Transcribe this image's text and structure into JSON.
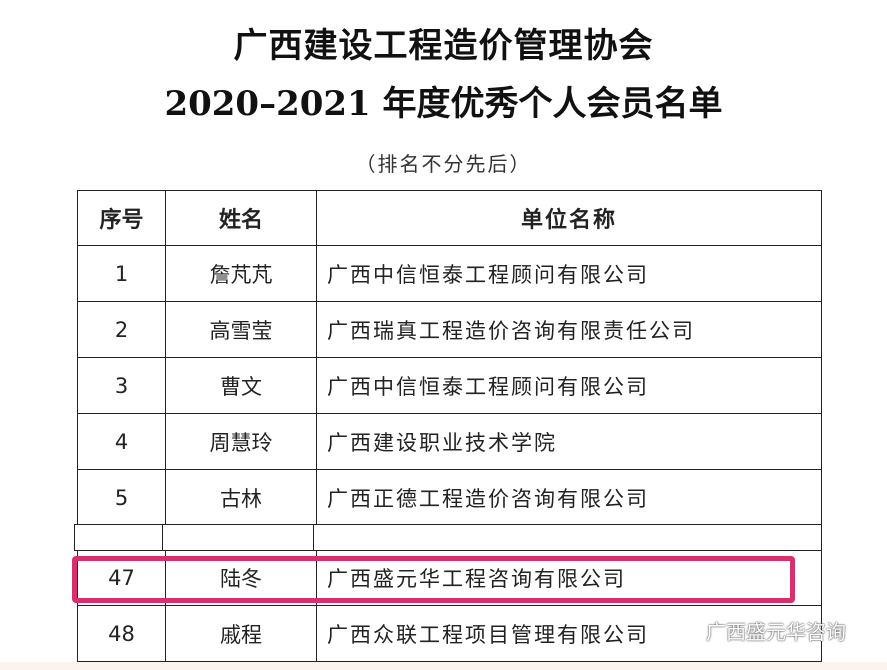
{
  "title_line1": "广西建设工程造价管理协会",
  "title_line2": "2020–2021 年度优秀个人会员名单",
  "subtitle": "（排名不分先后）",
  "table": {
    "headers": [
      "序号",
      "姓名",
      "单位名称"
    ],
    "rows": [
      {
        "no": "1",
        "name": "詹芃芃",
        "unit": "广西中信恒泰工程顾问有限公司"
      },
      {
        "no": "2",
        "name": "高雪莹",
        "unit": "广西瑞真工程造价咨询有限责任公司"
      },
      {
        "no": "3",
        "name": "曹文",
        "unit": "广西中信恒泰工程顾问有限公司"
      },
      {
        "no": "4",
        "name": "周慧玲",
        "unit": "广西建设职业技术学院"
      },
      {
        "no": "5",
        "name": "古林",
        "unit": "广西正德工程造价咨询有限公司"
      }
    ],
    "highlighted_row": {
      "no": "47",
      "name": "陆冬",
      "unit": "广西盛元华工程咨询有限公司"
    },
    "last_row": {
      "no": "48",
      "name": "戚程",
      "unit": "广西众联工程项目管理有限公司"
    }
  },
  "highlight_color": "#d8306e",
  "watermark": {
    "icon": "wechat-icon",
    "text": "广西盛元华咨询"
  }
}
